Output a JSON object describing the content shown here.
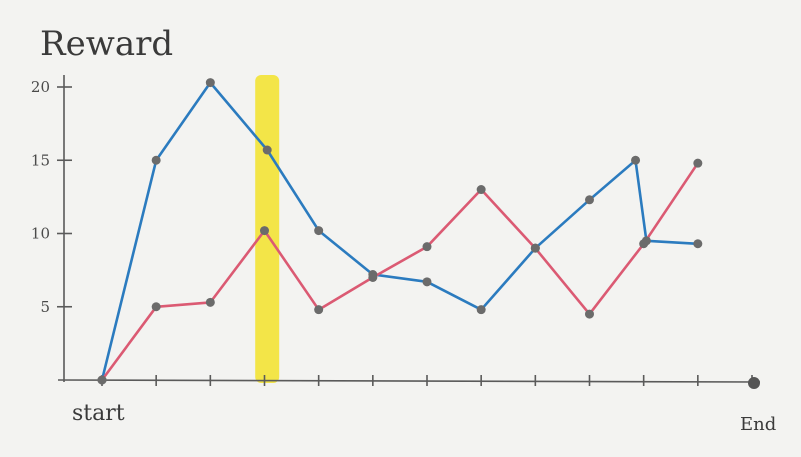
{
  "chart_data": {
    "type": "line",
    "title": "Reward",
    "x_start_label": "start",
    "x_end_label": "End",
    "x": [
      0,
      1,
      2,
      3,
      4,
      5,
      6,
      7,
      8,
      9,
      10,
      11,
      12
    ],
    "ylim": [
      0,
      21
    ],
    "yticks": [
      5,
      10,
      15,
      20
    ],
    "series": [
      {
        "color": "#2b7bbf",
        "points": [
          [
            0,
            0
          ],
          [
            1,
            15
          ],
          [
            2,
            20.3
          ],
          [
            3.05,
            15.7
          ],
          [
            4,
            10.2
          ],
          [
            5,
            7.2
          ],
          [
            6,
            6.7
          ],
          [
            7,
            4.8
          ],
          [
            8,
            9
          ],
          [
            9,
            12.3
          ],
          [
            9.85,
            15
          ],
          [
            10.05,
            9.5
          ],
          [
            11,
            9.3
          ]
        ]
      },
      {
        "color": "#db5a73",
        "points": [
          [
            0,
            0
          ],
          [
            1,
            5
          ],
          [
            2,
            5.3
          ],
          [
            3,
            10.2
          ],
          [
            4,
            4.8
          ],
          [
            5,
            7
          ],
          [
            6,
            9.1
          ],
          [
            7,
            13
          ],
          [
            8,
            9
          ],
          [
            9,
            4.5
          ],
          [
            10,
            9.3
          ],
          [
            11,
            14.8
          ]
        ]
      }
    ],
    "highlight": {
      "x": 3.05,
      "color": "#f2e22a"
    },
    "grid": false
  }
}
